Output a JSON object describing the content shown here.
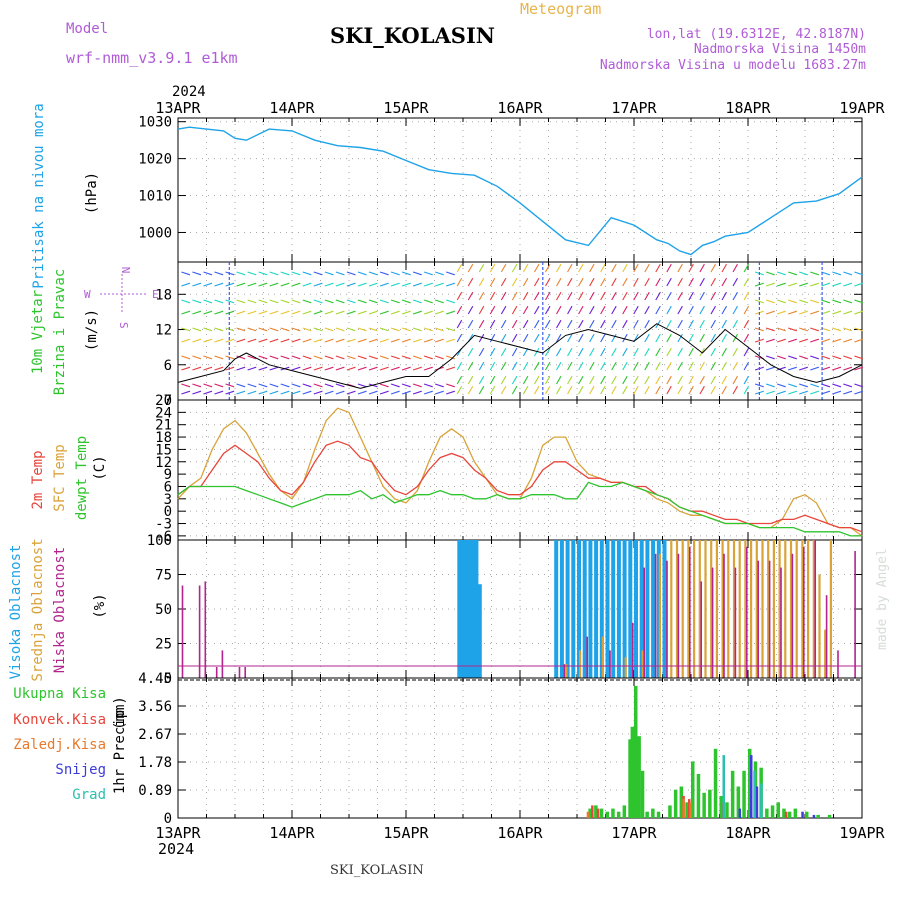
{
  "header": {
    "model_label": "Model",
    "model_value": "wrf-nmm_v3.9.1 e1km",
    "station": "SKI_KOLASIN",
    "meteogram_label": "Meteogram",
    "lonlat": "lon,lat (19.6312E, 42.8187N)",
    "altitude": "Nadmorska Visina 1450m",
    "model_altitude": "Nadmorska Visina u modelu 1683.27m",
    "footer_station": "SKI_KOLASIN",
    "credit": "made by Angel"
  },
  "colors": {
    "pressure": "#1fa3e8",
    "temp2m": "#e8453c",
    "sfc": "#d9a339",
    "dew": "#2ec42e",
    "high_cloud": "#1fa3e8",
    "mid_cloud": "#d9a339",
    "low_cloud": "#b3248f",
    "total_rain": "#2ec42e",
    "conv_rain": "#e8453c",
    "frz_rain": "#e87a2c",
    "snow": "#3c3cd9",
    "hail": "#2bbfb0",
    "wind_label": "#2ec42e",
    "wind_dir": "#b05cd6",
    "header_purple": "#b05cd6",
    "header_orange": "#e8b44c"
  },
  "chart_data": [
    {
      "type": "line",
      "panel": "pressure",
      "ylabel": "Pritisak na nivou mora",
      "unit": "(hPa)",
      "year_top": "2024",
      "year_bottom": "2024",
      "x_ticks": [
        "13APR",
        "14APR",
        "15APR",
        "16APR",
        "17APR",
        "18APR",
        "19APR"
      ],
      "yticks": [
        1000,
        1010,
        1020,
        1030
      ],
      "ylim": [
        992,
        1031
      ],
      "x_days": [
        0,
        0.1,
        0.25,
        0.4,
        0.5,
        0.6,
        0.8,
        1.0,
        1.2,
        1.4,
        1.6,
        1.8,
        2.0,
        2.2,
        2.4,
        2.6,
        2.8,
        3.0,
        3.2,
        3.4,
        3.6,
        3.8,
        4.0,
        4.2,
        4.3,
        4.4,
        4.5,
        4.6,
        4.7,
        4.8,
        5.0,
        5.2,
        5.4,
        5.6,
        5.8,
        6.0
      ],
      "values": [
        1028,
        1028.5,
        1028,
        1027.5,
        1025.5,
        1025,
        1028,
        1027.5,
        1025,
        1023.5,
        1023,
        1022,
        1019.5,
        1017,
        1016,
        1015.5,
        1012.5,
        1008,
        1003,
        998,
        996.5,
        1004,
        1002,
        998,
        997,
        995,
        994,
        996.5,
        997.5,
        999,
        1000,
        1004,
        1008,
        1008.5,
        1010.5,
        1015
      ]
    },
    {
      "type": "line",
      "panel": "wind",
      "ylabel_1": "10m Vjetar",
      "ylabel_2": "Brzina i Pravac",
      "unit": "(m/s)",
      "direction_labels": [
        "N",
        "E",
        "S",
        "W"
      ],
      "yticks": [
        0,
        6,
        12,
        18
      ],
      "ylim": [
        0,
        23.5
      ],
      "x_days": [
        0,
        0.2,
        0.4,
        0.5,
        0.6,
        0.8,
        1.0,
        1.2,
        1.4,
        1.6,
        1.8,
        2.0,
        2.2,
        2.4,
        2.6,
        2.8,
        3.0,
        3.2,
        3.4,
        3.6,
        3.8,
        4.0,
        4.2,
        4.4,
        4.6,
        4.8,
        5.0,
        5.2,
        5.4,
        5.6,
        5.8,
        6.0
      ],
      "series": [
        {
          "name": "speed",
          "values": [
            3,
            4,
            5,
            7,
            8,
            6,
            5,
            4,
            3,
            2,
            3,
            4,
            4,
            7,
            11,
            10,
            9,
            8,
            11,
            12,
            11,
            10,
            13,
            11,
            8,
            12,
            9,
            6,
            4,
            3,
            4,
            6
          ]
        }
      ]
    },
    {
      "type": "line",
      "panel": "temperature",
      "ylabel_1": "2m Temp",
      "ylabel_2": "SFC Temp",
      "ylabel_3": "dewpt Temp",
      "unit": "(C)",
      "yticks": [
        -6,
        -3,
        0,
        3,
        6,
        9,
        12,
        15,
        18,
        21,
        24,
        27
      ],
      "ylim": [
        -7,
        27
      ],
      "x_days": [
        0,
        0.1,
        0.2,
        0.3,
        0.4,
        0.5,
        0.6,
        0.7,
        0.8,
        0.9,
        1.0,
        1.1,
        1.2,
        1.3,
        1.4,
        1.5,
        1.6,
        1.7,
        1.8,
        1.9,
        2.0,
        2.1,
        2.2,
        2.3,
        2.4,
        2.5,
        2.6,
        2.7,
        2.8,
        2.9,
        3.0,
        3.1,
        3.2,
        3.3,
        3.4,
        3.5,
        3.6,
        3.7,
        3.8,
        3.9,
        4.0,
        4.1,
        4.2,
        4.3,
        4.4,
        4.5,
        4.6,
        4.7,
        4.8,
        4.9,
        5.0,
        5.1,
        5.2,
        5.3,
        5.4,
        5.5,
        5.6,
        5.7,
        5.8,
        5.9,
        6.0
      ],
      "series": [
        {
          "name": "2m Temp",
          "values": [
            4,
            6,
            6,
            10,
            14,
            16,
            14,
            12,
            8,
            5,
            4,
            7,
            12,
            16,
            17,
            16,
            13,
            12,
            8,
            5,
            4,
            6,
            10,
            13,
            14,
            13,
            10,
            8,
            5,
            4,
            4,
            6,
            10,
            12,
            12,
            10,
            8,
            8,
            7,
            7,
            6,
            6,
            4,
            3,
            1,
            0,
            0,
            -1,
            -2,
            -2,
            -3,
            -3,
            -3,
            -2,
            -2,
            -1,
            -2,
            -3,
            -4,
            -4,
            -5
          ]
        },
        {
          "name": "SFC Temp",
          "values": [
            3,
            6,
            8,
            15,
            20,
            22,
            19,
            14,
            9,
            5,
            3,
            7,
            15,
            22,
            25,
            24,
            18,
            12,
            6,
            3,
            2,
            5,
            12,
            18,
            20,
            18,
            12,
            8,
            4,
            3,
            3,
            8,
            16,
            18,
            18,
            12,
            9,
            8,
            7,
            7,
            6,
            5,
            3,
            2,
            0,
            -1,
            -1,
            -2,
            -3,
            -3,
            -3,
            -4,
            -4,
            -2,
            3,
            4,
            2,
            -3,
            -4,
            -4,
            -6
          ]
        },
        {
          "name": "dewpt Temp",
          "values": [
            4,
            6,
            6,
            6,
            6,
            6,
            5,
            4,
            3,
            2,
            1,
            2,
            3,
            4,
            4,
            4,
            5,
            3,
            4,
            2,
            3,
            4,
            4,
            5,
            4,
            4,
            3,
            3,
            4,
            3,
            3,
            4,
            4,
            4,
            3,
            3,
            7,
            6,
            6,
            7,
            6,
            5,
            4,
            3,
            1,
            0,
            -1,
            -2,
            -3,
            -3,
            -3,
            -4,
            -4,
            -4,
            -4,
            -5,
            -5,
            -5,
            -5,
            -6,
            -6
          ]
        }
      ]
    },
    {
      "type": "bar",
      "panel": "cloud",
      "ylabel_1": "Visoka Oblacnost",
      "ylabel_2": "Srednja Oblacnost",
      "ylabel_3": "Niska Oblacnost",
      "unit": "(%)",
      "yticks": [
        0,
        25,
        50,
        75,
        100
      ],
      "ylim": [
        0,
        100
      ],
      "series": [
        {
          "name": "Visoka Oblacnost",
          "x_days": [
            2.45,
            2.48,
            2.51,
            2.54,
            2.57,
            2.6,
            2.63,
            3.3,
            3.35,
            3.4,
            3.45,
            3.5,
            3.55,
            3.6,
            3.65,
            3.7,
            3.75,
            3.8,
            3.85,
            3.9,
            3.95,
            4.0,
            4.05,
            4.1,
            4.15,
            4.2,
            4.25
          ],
          "values": [
            100,
            100,
            100,
            100,
            100,
            100,
            68,
            100,
            100,
            100,
            100,
            100,
            100,
            100,
            100,
            100,
            100,
            100,
            100,
            100,
            100,
            100,
            100,
            100,
            100,
            100,
            100
          ]
        },
        {
          "name": "Srednja Oblacnost",
          "x_days": [
            3.38,
            3.5,
            3.7,
            3.9,
            4.05,
            4.2,
            4.3,
            4.35,
            4.4,
            4.45,
            4.5,
            4.55,
            4.6,
            4.65,
            4.7,
            4.75,
            4.8,
            4.85,
            4.9,
            4.95,
            5.0,
            5.05,
            5.1,
            5.15,
            5.2,
            5.25,
            5.3,
            5.35,
            5.4,
            5.45,
            5.5,
            5.55,
            5.6,
            5.65,
            5.7
          ],
          "values": [
            10,
            20,
            30,
            15,
            20,
            90,
            100,
            100,
            100,
            100,
            100,
            100,
            100,
            100,
            100,
            100,
            100,
            100,
            100,
            100,
            100,
            100,
            100,
            100,
            100,
            100,
            100,
            100,
            100,
            100,
            100,
            100,
            75,
            35,
            100
          ]
        },
        {
          "name": "Niska Oblacnost",
          "x_days": [
            0.05,
            0.2,
            0.25,
            0.35,
            0.4,
            0.55,
            0.6,
            3.4,
            3.6,
            3.8,
            4.0,
            4.1,
            4.2,
            4.3,
            4.4,
            4.5,
            4.6,
            4.7,
            4.8,
            4.9,
            5.0,
            5.1,
            5.2,
            5.3,
            5.4,
            5.5,
            5.6,
            5.7,
            5.8,
            5.95
          ],
          "values": [
            67,
            67,
            70,
            8,
            20,
            8,
            8,
            10,
            30,
            20,
            40,
            80,
            90,
            85,
            90,
            95,
            70,
            80,
            90,
            80,
            95,
            85,
            85,
            80,
            90,
            95,
            100,
            60,
            20,
            92
          ]
        }
      ]
    },
    {
      "type": "bar",
      "panel": "precip",
      "ylabel": "1hr Precip",
      "unit": "(mm)",
      "legend": [
        "Ukupna Kisa",
        "Konvek.Kisa",
        "Zaledj.Kisa",
        "Snijeg",
        "Grad"
      ],
      "yticks": [
        0,
        0.89,
        1.78,
        2.67,
        3.56,
        4.45
      ],
      "ytick_labels": [
        "0",
        "0.89",
        "1.78",
        "2.67",
        "3.56",
        "4.45"
      ],
      "ylim": [
        0,
        4.45
      ],
      "series": [
        {
          "name": "Ukupna Kisa",
          "x_days": [
            3.6,
            3.65,
            3.7,
            3.75,
            3.8,
            3.85,
            3.9,
            3.95,
            3.97,
            4.0,
            4.03,
            4.06,
            4.1,
            4.15,
            4.2,
            4.3,
            4.35,
            4.4,
            4.45,
            4.5,
            4.55,
            4.6,
            4.65,
            4.7,
            4.75,
            4.8,
            4.85,
            4.9,
            4.95,
            5.0,
            5.05,
            5.1,
            5.15,
            5.2,
            5.25,
            5.3,
            5.35,
            5.4,
            5.5,
            5.6,
            5.7
          ],
          "values": [
            0.3,
            0.4,
            0.3,
            0.2,
            0.3,
            0.2,
            0.4,
            2.5,
            2.9,
            4.2,
            2.6,
            1.5,
            0.2,
            0.3,
            0.2,
            0.4,
            0.9,
            1.0,
            0.5,
            1.8,
            1.4,
            0.8,
            0.9,
            2.2,
            0.7,
            0.5,
            1.5,
            1.0,
            1.5,
            2.2,
            1.8,
            1.6,
            0.3,
            0.4,
            0.5,
            0.3,
            0.2,
            0.3,
            0.2,
            0.1,
            0.1
          ]
        },
        {
          "name": "Konvek.Kisa",
          "x_days": [
            3.65,
            3.7,
            4.45,
            4.5,
            4.8,
            5.35
          ],
          "values": [
            0.4,
            0.3,
            0.7,
            0.6,
            0.5,
            0.2
          ]
        },
        {
          "name": "Zaledj.Kisa",
          "x_days": [
            3.62,
            4.46,
            4.52
          ],
          "values": [
            0.2,
            0.6,
            0.5
          ]
        },
        {
          "name": "Snijeg",
          "x_days": [
            4.9,
            5.0,
            5.05,
            5.45,
            5.55
          ],
          "values": [
            0.3,
            2.0,
            1.0,
            0.2,
            0.1
          ]
        },
        {
          "name": "Grad",
          "x_days": [
            4.75,
            5.02,
            5.08
          ],
          "values": [
            2.0,
            1.5,
            1.1
          ]
        }
      ]
    }
  ]
}
